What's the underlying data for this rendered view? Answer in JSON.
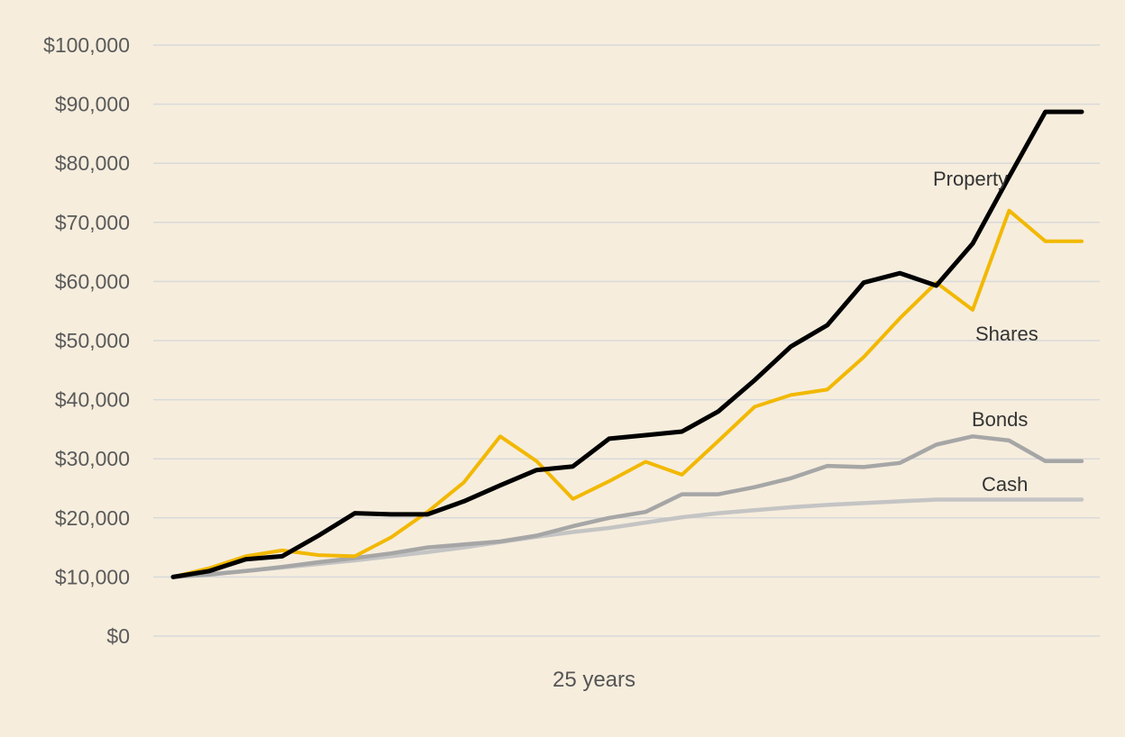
{
  "chart_data": {
    "type": "line",
    "title": "",
    "xlabel": "25 years",
    "ylabel": "",
    "ylim": [
      0,
      100000
    ],
    "yticks": [
      0,
      10000,
      20000,
      30000,
      40000,
      50000,
      60000,
      70000,
      80000,
      90000,
      100000
    ],
    "ytick_labels": [
      "$0",
      "$10,000",
      "$20,000",
      "$30,000",
      "$40,000",
      "$50,000",
      "$60,000",
      "$70,000",
      "$80,000",
      "$90,000",
      "$100,000"
    ],
    "x": [
      0,
      1,
      2,
      3,
      4,
      5,
      6,
      7,
      8,
      9,
      10,
      11,
      12,
      13,
      14,
      15,
      16,
      17,
      18,
      19,
      20,
      21,
      22,
      23,
      24,
      25
    ],
    "grid": true,
    "legend": "inline labels",
    "series": [
      {
        "name": "Cash",
        "color": "#c4c4c4",
        "values": [
          10000,
          10500,
          11000,
          11600,
          12200,
          12800,
          13500,
          14200,
          15000,
          15900,
          16800,
          17600,
          18300,
          19200,
          20100,
          20800,
          21300,
          21800,
          22200,
          22500,
          22800,
          23100,
          23100,
          23100,
          23100,
          23100
        ]
      },
      {
        "name": "Bonds",
        "color": "#a6a6a6",
        "values": [
          10000,
          10400,
          11000,
          11700,
          12500,
          13200,
          14000,
          15000,
          15500,
          16000,
          17000,
          18600,
          20000,
          21000,
          24000,
          24000,
          25200,
          26700,
          28800,
          28600,
          29300,
          32400,
          33800,
          33100,
          29600,
          29600
        ]
      },
      {
        "name": "Shares",
        "color": "#f2b800",
        "values": [
          10000,
          11500,
          13500,
          14500,
          13700,
          13500,
          16700,
          21000,
          26000,
          33800,
          29600,
          23200,
          26200,
          29500,
          27300,
          33000,
          38800,
          40800,
          41700,
          47200,
          53800,
          59800,
          55200,
          72000,
          66800,
          66800
        ]
      },
      {
        "name": "Property",
        "color": "#000000",
        "values": [
          10000,
          11000,
          13000,
          13500,
          17000,
          20800,
          20600,
          20600,
          22800,
          25500,
          28100,
          28700,
          33400,
          34000,
          34600,
          38000,
          43300,
          49000,
          52600,
          59800,
          61400,
          59300,
          66400,
          77700,
          88700,
          88700
        ]
      }
    ],
    "labels": {
      "property": "Property",
      "shares": "Shares",
      "bonds": "Bonds",
      "cash": "Cash"
    }
  }
}
